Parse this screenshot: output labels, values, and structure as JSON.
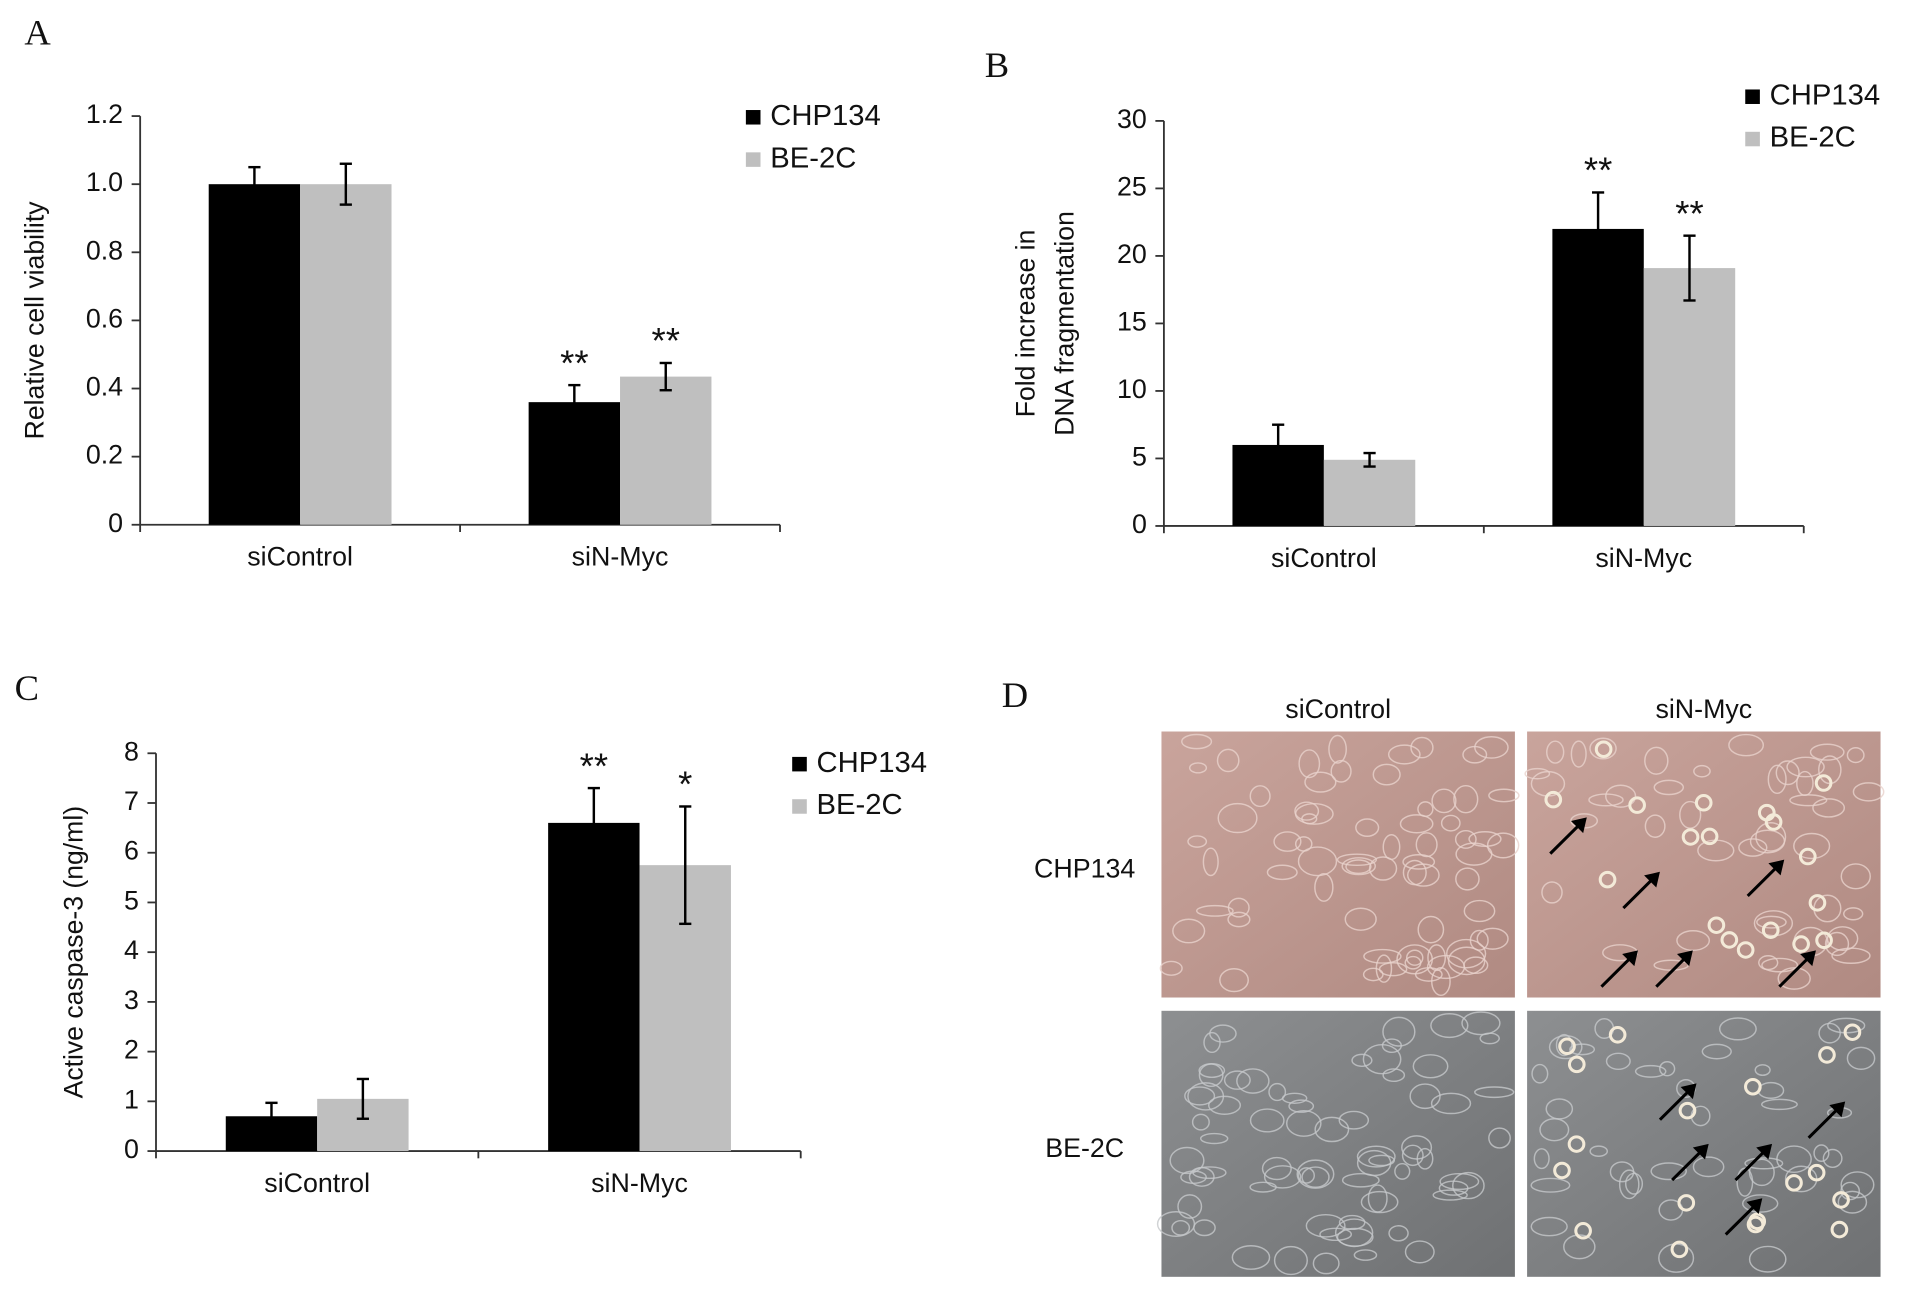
{
  "chart_data": [
    {
      "type": "bar",
      "panel": "A",
      "ylabel": [
        "Relative cell viability"
      ],
      "categories": [
        "siControl",
        "siN-Myc"
      ],
      "series": [
        {
          "name": "CHP134",
          "color": "#000000",
          "values": [
            1.0,
            0.36
          ],
          "errors": [
            0.05,
            0.05
          ],
          "significance": [
            null,
            "**"
          ]
        },
        {
          "name": "BE-2C",
          "color": "#bfbfbf",
          "values": [
            1.0,
            0.435
          ],
          "errors": [
            0.06,
            0.04
          ],
          "significance": [
            null,
            "**"
          ]
        }
      ],
      "ylim": [
        0,
        1.2
      ],
      "yticks": [
        0,
        0.2,
        0.4,
        0.6,
        0.8,
        {
          "value": 1,
          "label": "1.0"
        },
        1.2
      ],
      "grid": false
    },
    {
      "type": "bar",
      "panel": "B",
      "ylabel": [
        "Fold increase in",
        "DNA fragmentation"
      ],
      "categories": [
        "siControl",
        "siN-Myc"
      ],
      "series": [
        {
          "name": "CHP134",
          "color": "#000000",
          "values": [
            6.0,
            22.0
          ],
          "errors": [
            1.5,
            2.7
          ],
          "significance": [
            null,
            "**"
          ]
        },
        {
          "name": "BE-2C",
          "color": "#bfbfbf",
          "values": [
            4.9,
            19.1
          ],
          "errors": [
            0.5,
            2.4
          ],
          "significance": [
            null,
            "**"
          ]
        }
      ],
      "ylim": [
        0,
        30
      ],
      "yticks": [
        0,
        5,
        10,
        15,
        20,
        25,
        30
      ],
      "grid": false
    },
    {
      "type": "bar",
      "panel": "C",
      "ylabel": [
        "Active caspase-3 (ng/ml)"
      ],
      "categories": [
        "siControl",
        "siN-Myc"
      ],
      "series": [
        {
          "name": "CHP134",
          "color": "#000000",
          "values": [
            0.7,
            6.6
          ],
          "errors": [
            0.27,
            0.7
          ],
          "significance": [
            null,
            "**"
          ]
        },
        {
          "name": "BE-2C",
          "color": "#bfbfbf",
          "values": [
            1.05,
            5.75
          ],
          "errors": [
            0.4,
            1.18
          ],
          "significance": [
            null,
            "*"
          ]
        }
      ],
      "ylim": [
        0,
        8
      ],
      "yticks": [
        0,
        1,
        2,
        3,
        4,
        5,
        6,
        7,
        8
      ],
      "grid": false
    }
  ],
  "micrographs": {
    "panel": "D",
    "columns": [
      "siControl",
      "siN-Myc"
    ],
    "rows": [
      "CHP134",
      "BE-2C"
    ]
  }
}
